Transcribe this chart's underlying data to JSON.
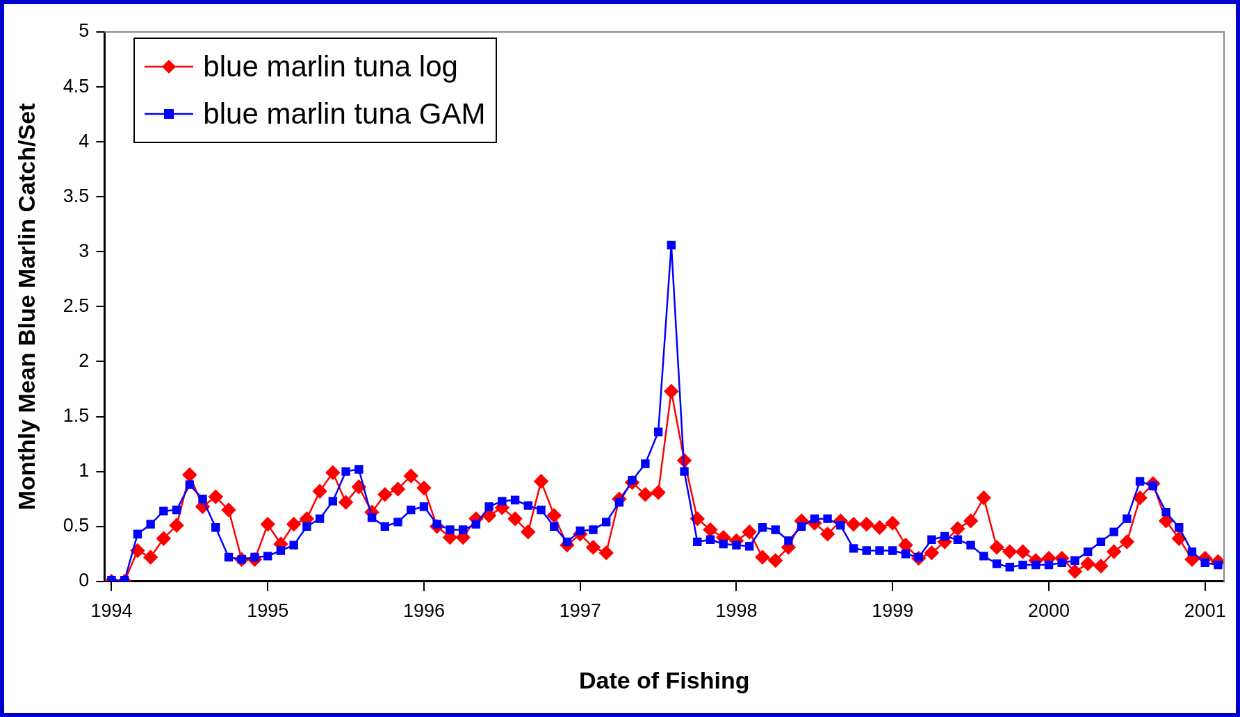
{
  "chart_data": {
    "type": "line",
    "xlabel": "Date of Fishing",
    "ylabel": "Monthly Mean Blue Marlin Catch/Set",
    "x": [
      "1994-01",
      "1994-02",
      "1994-03",
      "1994-04",
      "1994-05",
      "1994-06",
      "1994-07",
      "1994-08",
      "1994-09",
      "1994-10",
      "1994-11",
      "1994-12",
      "1995-01",
      "1995-02",
      "1995-03",
      "1995-04",
      "1995-05",
      "1995-06",
      "1995-07",
      "1995-08",
      "1995-09",
      "1995-10",
      "1995-11",
      "1995-12",
      "1996-01",
      "1996-02",
      "1996-03",
      "1996-04",
      "1996-05",
      "1996-06",
      "1996-07",
      "1996-08",
      "1996-09",
      "1996-10",
      "1996-11",
      "1996-12",
      "1997-01",
      "1997-02",
      "1997-03",
      "1997-04",
      "1997-05",
      "1997-06",
      "1997-07",
      "1997-08",
      "1997-09",
      "1997-10",
      "1997-11",
      "1997-12",
      "1998-01",
      "1998-02",
      "1998-03",
      "1998-04",
      "1998-05",
      "1998-06",
      "1998-07",
      "1998-08",
      "1998-09",
      "1998-10",
      "1998-11",
      "1998-12",
      "1999-01",
      "1999-02",
      "1999-03",
      "1999-04",
      "1999-05",
      "1999-06",
      "1999-07",
      "1999-08",
      "1999-09",
      "1999-10",
      "1999-11",
      "1999-12",
      "2000-01",
      "2000-02",
      "2000-03",
      "2000-04",
      "2000-05",
      "2000-06",
      "2000-07",
      "2000-08",
      "2000-09",
      "2000-10",
      "2000-11",
      "2000-12",
      "2001-01",
      "2001-02"
    ],
    "series": [
      {
        "name": "blue marlin tuna log",
        "color": "#ff0000",
        "marker": "diamond",
        "values": [
          0,
          0,
          0.28,
          0.22,
          0.39,
          0.51,
          0.97,
          0.68,
          0.77,
          0.65,
          0.2,
          0.2,
          0.52,
          0.34,
          0.52,
          0.57,
          0.82,
          0.99,
          0.72,
          0.86,
          0.63,
          0.79,
          0.84,
          0.96,
          0.85,
          0.5,
          0.4,
          0.4,
          0.57,
          0.6,
          0.67,
          0.57,
          0.45,
          0.91,
          0.6,
          0.33,
          0.43,
          0.31,
          0.26,
          0.75,
          0.9,
          0.79,
          0.81,
          1.73,
          1.1,
          0.57,
          0.47,
          0.4,
          0.37,
          0.45,
          0.22,
          0.19,
          0.31,
          0.55,
          0.53,
          0.43,
          0.55,
          0.52,
          0.52,
          0.49,
          0.53,
          0.33,
          0.21,
          0.26,
          0.36,
          0.48,
          0.55,
          0.76,
          0.31,
          0.27,
          0.27,
          0.19,
          0.21,
          0.21,
          0.09,
          0.16,
          0.14,
          0.27,
          0.36,
          0.76,
          0.89,
          0.55,
          0.39,
          0.2,
          0.21,
          0.18
        ]
      },
      {
        "name": "blue marlin tuna GAM",
        "color": "#0000ff",
        "marker": "square",
        "values": [
          0.01,
          0.01,
          0.43,
          0.52,
          0.64,
          0.65,
          0.88,
          0.75,
          0.49,
          0.22,
          0.2,
          0.22,
          0.23,
          0.28,
          0.33,
          0.5,
          0.57,
          0.73,
          1.0,
          1.02,
          0.58,
          0.5,
          0.54,
          0.65,
          0.68,
          0.52,
          0.47,
          0.47,
          0.52,
          0.68,
          0.73,
          0.74,
          0.69,
          0.65,
          0.5,
          0.36,
          0.46,
          0.47,
          0.54,
          0.72,
          0.92,
          1.07,
          1.36,
          3.06,
          1.0,
          0.36,
          0.38,
          0.34,
          0.33,
          0.32,
          0.49,
          0.47,
          0.37,
          0.5,
          0.57,
          0.57,
          0.51,
          0.3,
          0.28,
          0.28,
          0.28,
          0.25,
          0.22,
          0.38,
          0.41,
          0.38,
          0.33,
          0.23,
          0.16,
          0.13,
          0.15,
          0.15,
          0.15,
          0.17,
          0.19,
          0.27,
          0.36,
          0.45,
          0.57,
          0.91,
          0.87,
          0.63,
          0.49,
          0.27,
          0.17,
          0.15
        ]
      }
    ],
    "xlim": [
      "1993-12-15",
      "2001-02-15"
    ],
    "xticks": [
      {
        "value": "1994-01",
        "label": "1994"
      },
      {
        "value": "1995-01",
        "label": "1995"
      },
      {
        "value": "1996-01",
        "label": "1996"
      },
      {
        "value": "1997-01",
        "label": "1997"
      },
      {
        "value": "1998-01",
        "label": "1998"
      },
      {
        "value": "1999-01",
        "label": "1999"
      },
      {
        "value": "2000-01",
        "label": "2000"
      },
      {
        "value": "2001-01",
        "label": "2001"
      }
    ],
    "ylim": [
      0,
      5
    ],
    "yticks": [
      0,
      0.5,
      1,
      1.5,
      2,
      2.5,
      3,
      3.5,
      4,
      4.5,
      5
    ],
    "grid": false,
    "legend": "top left",
    "line_style": "solid"
  }
}
